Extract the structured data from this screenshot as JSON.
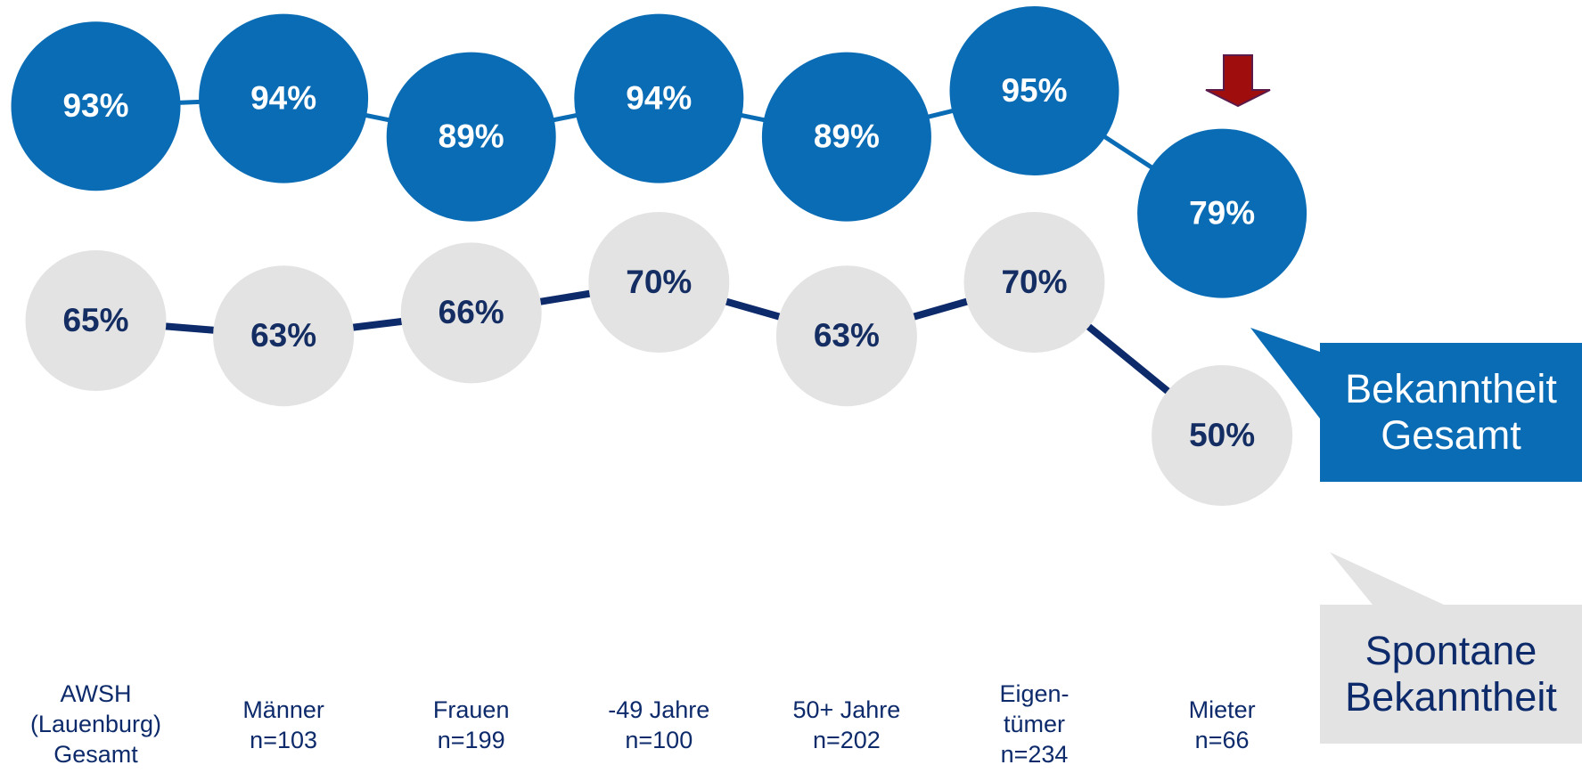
{
  "chart_data": {
    "type": "line",
    "categories": [
      [
        "AWSH",
        "(Lauenburg)",
        "Gesamt"
      ],
      [
        "Männer",
        "n=103"
      ],
      [
        "Frauen",
        "n=199"
      ],
      [
        "-49 Jahre",
        "n=100"
      ],
      [
        "50+ Jahre",
        "n=202"
      ],
      [
        "Eigen-",
        "tümer",
        "n=234"
      ],
      [
        "Mieter",
        "n=66"
      ]
    ],
    "series": [
      {
        "name": "Bekanntheit Gesamt",
        "color": "#0a6cb4",
        "line_color": "#0a6cb4",
        "label_color": "#ffffff",
        "values": [
          93,
          94,
          89,
          94,
          89,
          95,
          79
        ],
        "value_labels": [
          "93%",
          "94%",
          "89%",
          "94%",
          "89%",
          "95%",
          "79%"
        ]
      },
      {
        "name": "Spontane Bekanntheit",
        "color": "#e3e3e3",
        "line_color": "#0d2a6b",
        "label_color": "#142d62",
        "values": [
          65,
          63,
          66,
          70,
          63,
          70,
          50
        ],
        "value_labels": [
          "65%",
          "63%",
          "66%",
          "70%",
          "63%",
          "70%",
          "50%"
        ]
      }
    ],
    "ylim": [
      40,
      100
    ],
    "grid": false
  }
}
